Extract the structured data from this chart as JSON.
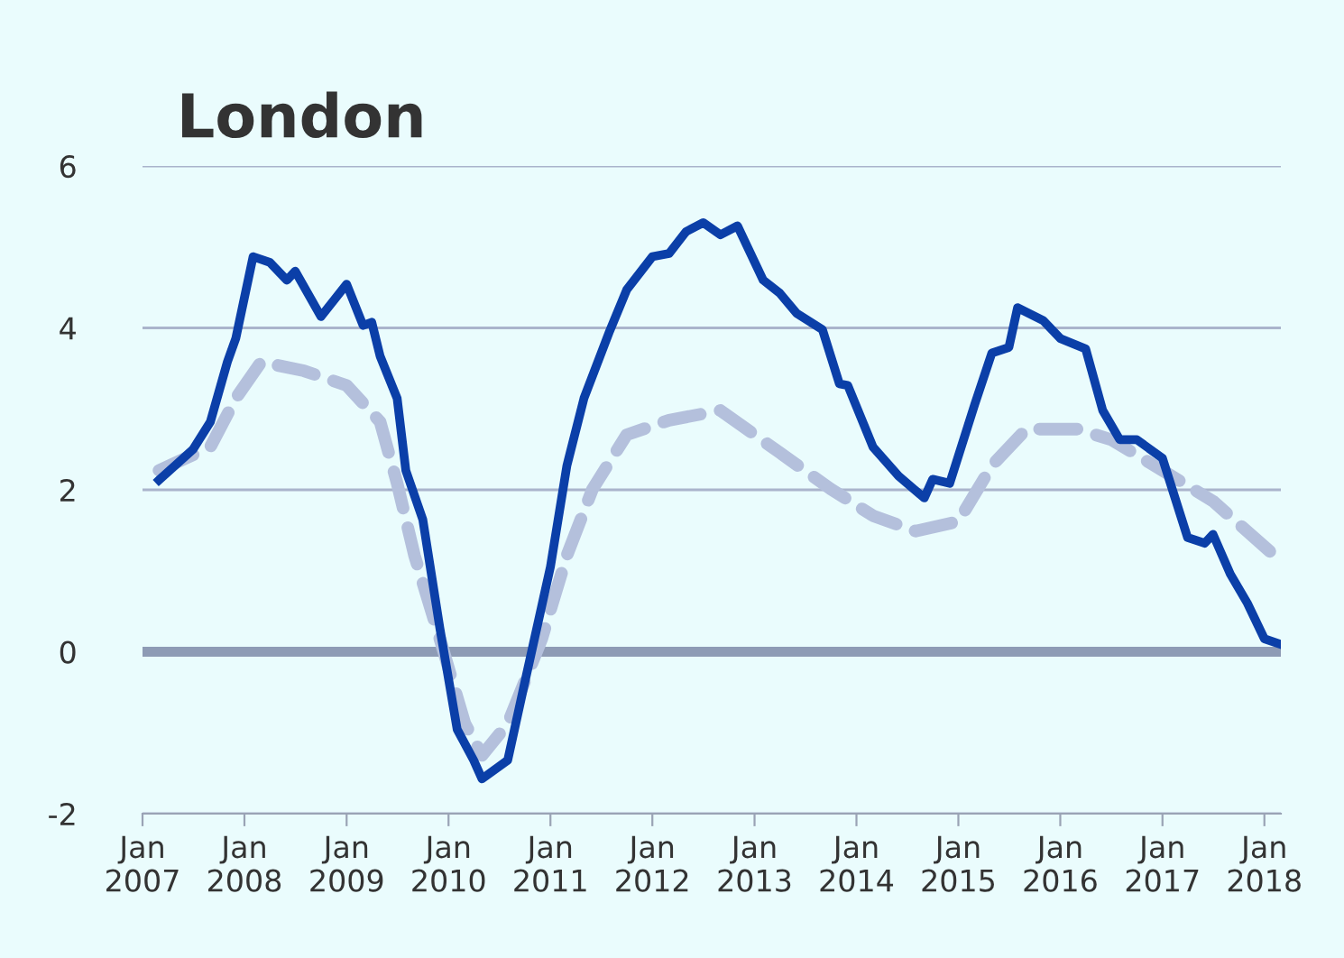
{
  "chart_data": {
    "type": "line",
    "title": "London",
    "xlim": [
      "2007-01",
      "2018-03"
    ],
    "ylim": [
      -2,
      6
    ],
    "xticks": [
      {
        "value": "2007-01",
        "label": "Jan\n2007"
      },
      {
        "value": "2008-01",
        "label": "Jan\n2008"
      },
      {
        "value": "2009-01",
        "label": "Jan\n2009"
      },
      {
        "value": "2010-01",
        "label": "Jan\n2010"
      },
      {
        "value": "2011-01",
        "label": "Jan\n2011"
      },
      {
        "value": "2012-01",
        "label": "Jan\n2012"
      },
      {
        "value": "2013-01",
        "label": "Jan\n2013"
      },
      {
        "value": "2014-01",
        "label": "Jan\n2014"
      },
      {
        "value": "2015-01",
        "label": "Jan\n2015"
      },
      {
        "value": "2016-01",
        "label": "Jan\n2016"
      },
      {
        "value": "2017-01",
        "label": "Jan\n2017"
      },
      {
        "value": "2018-01",
        "label": "Jan\n2018"
      }
    ],
    "yticks": [
      -2,
      0,
      2,
      4,
      6
    ],
    "grid": "y",
    "marker": "none",
    "ref_lines": [
      {
        "axis": "y",
        "value": 0,
        "color": "#8e9bb5"
      }
    ],
    "series": [
      {
        "color": "#b4c0dc",
        "line_style": "dashed",
        "x": [
          "2007-03",
          "2007-09",
          "2007-12",
          "2008-03",
          "2008-08",
          "2009-01",
          "2009-05",
          "2009-07",
          "2009-09",
          "2009-12",
          "2010-03",
          "2010-05",
          "2010-08",
          "2010-12",
          "2011-03",
          "2011-06",
          "2011-10",
          "2012-03",
          "2012-09",
          "2013-04",
          "2013-10",
          "2014-03",
          "2014-08",
          "2015-01",
          "2015-05",
          "2015-09",
          "2016-03",
          "2016-07",
          "2017-01",
          "2017-07",
          "2018-03"
        ],
        "values": [
          2.24,
          2.53,
          3.13,
          3.58,
          3.47,
          3.29,
          2.84,
          2.08,
          1.19,
          0.16,
          -0.89,
          -1.28,
          -0.89,
          0.16,
          1.19,
          2.01,
          2.68,
          2.86,
          2.98,
          2.46,
          2.01,
          1.68,
          1.49,
          1.61,
          2.3,
          2.75,
          2.75,
          2.62,
          2.24,
          1.86,
          1.12
        ]
      },
      {
        "color": "#0b3fa8",
        "line_style": "solid",
        "x": [
          "2007-03",
          "2007-07",
          "2007-09",
          "2007-11",
          "2007-12",
          "2008-02",
          "2008-04",
          "2008-06",
          "2008-07",
          "2008-10",
          "2009-01",
          "2009-03",
          "2009-04",
          "2009-05",
          "2009-07",
          "2009-08",
          "2009-10",
          "2009-12",
          "2010-02",
          "2010-04",
          "2010-05",
          "2010-08",
          "2010-10",
          "2011-01",
          "2011-03",
          "2011-05",
          "2011-08",
          "2011-10",
          "2012-01",
          "2012-03",
          "2012-05",
          "2012-07",
          "2012-09",
          "2012-11",
          "2013-02",
          "2013-04",
          "2013-06",
          "2013-09",
          "2013-11",
          "2013-12",
          "2014-03",
          "2014-06",
          "2014-09",
          "2014-10",
          "2014-12",
          "2015-03",
          "2015-05",
          "2015-07",
          "2015-08",
          "2015-11",
          "2016-01",
          "2016-04",
          "2016-06",
          "2016-08",
          "2016-10",
          "2017-01",
          "2017-04",
          "2017-06",
          "2017-07",
          "2017-09",
          "2017-11",
          "2018-01",
          "2018-03"
        ],
        "values": [
          2.12,
          2.5,
          2.84,
          3.58,
          3.87,
          4.88,
          4.81,
          4.59,
          4.7,
          4.14,
          4.54,
          4.03,
          4.07,
          3.65,
          3.13,
          2.24,
          1.63,
          0.29,
          -0.96,
          -1.34,
          -1.57,
          -1.34,
          -0.38,
          1.05,
          2.3,
          3.13,
          3.96,
          4.47,
          4.88,
          4.92,
          5.19,
          5.3,
          5.15,
          5.26,
          4.59,
          4.43,
          4.18,
          3.98,
          3.31,
          3.29,
          2.53,
          2.17,
          1.9,
          2.13,
          2.08,
          3.06,
          3.69,
          3.76,
          4.25,
          4.09,
          3.87,
          3.74,
          2.98,
          2.62,
          2.62,
          2.39,
          1.41,
          1.34,
          1.45,
          0.96,
          0.6,
          0.16,
          0.09
        ]
      }
    ]
  }
}
